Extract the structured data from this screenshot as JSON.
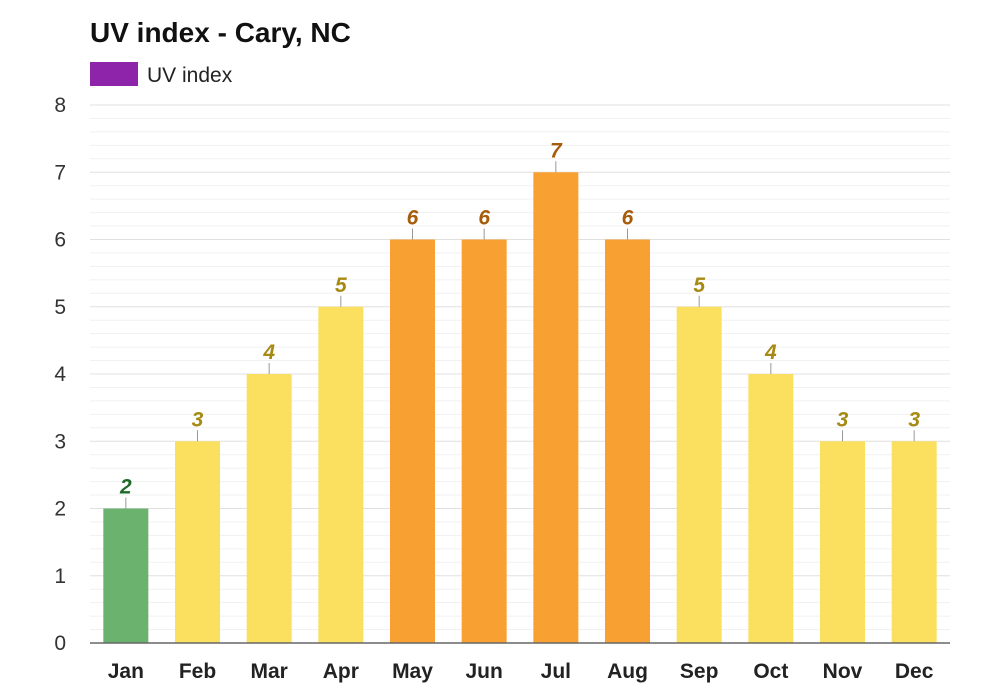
{
  "chart_data": {
    "type": "bar",
    "title": "UV index - Cary, NC",
    "legend": {
      "placement": "top-left",
      "entries": [
        {
          "label": "UV index",
          "color": "#8e24aa"
        }
      ]
    },
    "categories": [
      "Jan",
      "Feb",
      "Mar",
      "Apr",
      "May",
      "Jun",
      "Jul",
      "Aug",
      "Sep",
      "Oct",
      "Nov",
      "Dec"
    ],
    "series": [
      {
        "name": "UV index",
        "values": [
          2,
          3,
          4,
          5,
          6,
          6,
          7,
          6,
          5,
          4,
          3,
          3
        ]
      }
    ],
    "data_labels": [
      "2",
      "3",
      "4",
      "5",
      "6",
      "6",
      "7",
      "6",
      "5",
      "4",
      "3",
      "3"
    ],
    "ylim": [
      0,
      8
    ],
    "yticks": [
      "0",
      "1",
      "2",
      "3",
      "4",
      "5",
      "6",
      "7",
      "8"
    ],
    "grid": true,
    "xlabel": "",
    "ylabel": "",
    "colors": {
      "low": "#6ab26e",
      "moderate": "#fbdf5e",
      "high": "#f9a033",
      "low_label": "#1e6b2a",
      "moderate_label": "#a68a14",
      "high_label": "#a65c0a",
      "gridline": "#e0e0e0",
      "minor_gridline": "#f1f1f1",
      "axis": "#666666"
    },
    "bar_categories": [
      "low",
      "moderate",
      "moderate",
      "moderate",
      "high",
      "high",
      "high",
      "high",
      "moderate",
      "moderate",
      "moderate",
      "moderate"
    ]
  }
}
